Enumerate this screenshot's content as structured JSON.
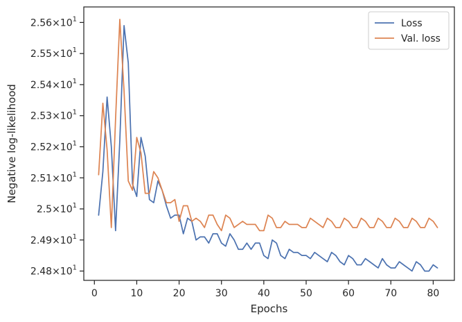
{
  "chart_data": {
    "type": "line",
    "xlabel": "Epochs",
    "ylabel": "Negative log-likelihood",
    "xlim": [
      -2.5,
      85
    ],
    "ylim": [
      24.77,
      25.65
    ],
    "x_ticks": [
      0,
      10,
      20,
      30,
      40,
      50,
      60,
      70,
      80
    ],
    "y_ticks": [
      {
        "value": 24.8,
        "label": "2.48×10",
        "exp": "1"
      },
      {
        "value": 24.9,
        "label": "2.49×10",
        "exp": "1"
      },
      {
        "value": 25.0,
        "label": "2.5×10",
        "exp": "1"
      },
      {
        "value": 25.1,
        "label": "2.51×10",
        "exp": "1"
      },
      {
        "value": 25.2,
        "label": "2.52×10",
        "exp": "1"
      },
      {
        "value": 25.3,
        "label": "2.53×10",
        "exp": "1"
      },
      {
        "value": 25.4,
        "label": "2.54×10",
        "exp": "1"
      },
      {
        "value": 25.5,
        "label": "2.55×10",
        "exp": "1"
      },
      {
        "value": 25.6,
        "label": "2.56×10",
        "exp": "1"
      }
    ],
    "grid": false,
    "legend_position": "top-right",
    "series": [
      {
        "name": "Loss",
        "color": "#4c72b0",
        "x": [
          1,
          2,
          3,
          4,
          5,
          6,
          7,
          8,
          9,
          10,
          11,
          12,
          13,
          14,
          15,
          16,
          17,
          18,
          19,
          20,
          21,
          22,
          23,
          24,
          25,
          26,
          27,
          28,
          29,
          30,
          31,
          32,
          33,
          34,
          35,
          36,
          37,
          38,
          39,
          40,
          41,
          42,
          43,
          44,
          45,
          46,
          47,
          48,
          49,
          50,
          51,
          52,
          53,
          54,
          55,
          56,
          57,
          58,
          59,
          60,
          61,
          62,
          63,
          64,
          65,
          66,
          67,
          68,
          69,
          70,
          71,
          72,
          73,
          74,
          75,
          76,
          77,
          78,
          79,
          80,
          81
        ],
        "y": [
          24.98,
          25.12,
          25.36,
          25.2,
          24.93,
          25.22,
          25.59,
          25.47,
          25.08,
          25.04,
          25.23,
          25.17,
          25.03,
          25.02,
          25.09,
          25.06,
          25.01,
          24.97,
          24.98,
          24.98,
          24.92,
          24.97,
          24.96,
          24.9,
          24.91,
          24.91,
          24.89,
          24.92,
          24.92,
          24.89,
          24.88,
          24.92,
          24.9,
          24.87,
          24.87,
          24.89,
          24.87,
          24.89,
          24.89,
          24.85,
          24.84,
          24.9,
          24.89,
          24.85,
          24.84,
          24.87,
          24.86,
          24.86,
          24.85,
          24.85,
          24.84,
          24.86,
          24.85,
          24.84,
          24.83,
          24.86,
          24.85,
          24.83,
          24.82,
          24.85,
          24.84,
          24.82,
          24.82,
          24.84,
          24.83,
          24.82,
          24.81,
          24.84,
          24.82,
          24.81,
          24.81,
          24.83,
          24.82,
          24.81,
          24.8,
          24.83,
          24.82,
          24.8,
          24.8,
          24.82,
          24.81
        ]
      },
      {
        "name": "Val. loss",
        "color": "#dd8452",
        "x": [
          1,
          2,
          3,
          4,
          5,
          6,
          7,
          8,
          9,
          10,
          11,
          12,
          13,
          14,
          15,
          16,
          17,
          18,
          19,
          20,
          21,
          22,
          23,
          24,
          25,
          26,
          27,
          28,
          29,
          30,
          31,
          32,
          33,
          34,
          35,
          36,
          37,
          38,
          39,
          40,
          41,
          42,
          43,
          44,
          45,
          46,
          47,
          48,
          49,
          50,
          51,
          52,
          53,
          54,
          55,
          56,
          57,
          58,
          59,
          60,
          61,
          62,
          63,
          64,
          65,
          66,
          67,
          68,
          69,
          70,
          71,
          72,
          73,
          74,
          75,
          76,
          77,
          78,
          79,
          80,
          81
        ],
        "y": [
          25.11,
          25.34,
          25.19,
          24.94,
          25.29,
          25.61,
          25.38,
          25.09,
          25.06,
          25.23,
          25.18,
          25.05,
          25.05,
          25.12,
          25.1,
          25.06,
          25.02,
          25.02,
          25.03,
          24.96,
          25.01,
          25.01,
          24.96,
          24.97,
          24.96,
          24.94,
          24.98,
          24.98,
          24.95,
          24.93,
          24.98,
          24.97,
          24.94,
          24.95,
          24.96,
          24.95,
          24.95,
          24.95,
          24.93,
          24.93,
          24.98,
          24.97,
          24.94,
          24.94,
          24.96,
          24.95,
          24.95,
          24.95,
          24.94,
          24.94,
          24.97,
          24.96,
          24.95,
          24.94,
          24.97,
          24.96,
          24.94,
          24.94,
          24.97,
          24.96,
          24.94,
          24.94,
          24.97,
          24.96,
          24.94,
          24.94,
          24.97,
          24.96,
          24.94,
          24.94,
          24.97,
          24.96,
          24.94,
          24.94,
          24.97,
          24.96,
          24.94,
          24.94,
          24.97,
          24.96,
          24.94
        ]
      }
    ]
  }
}
